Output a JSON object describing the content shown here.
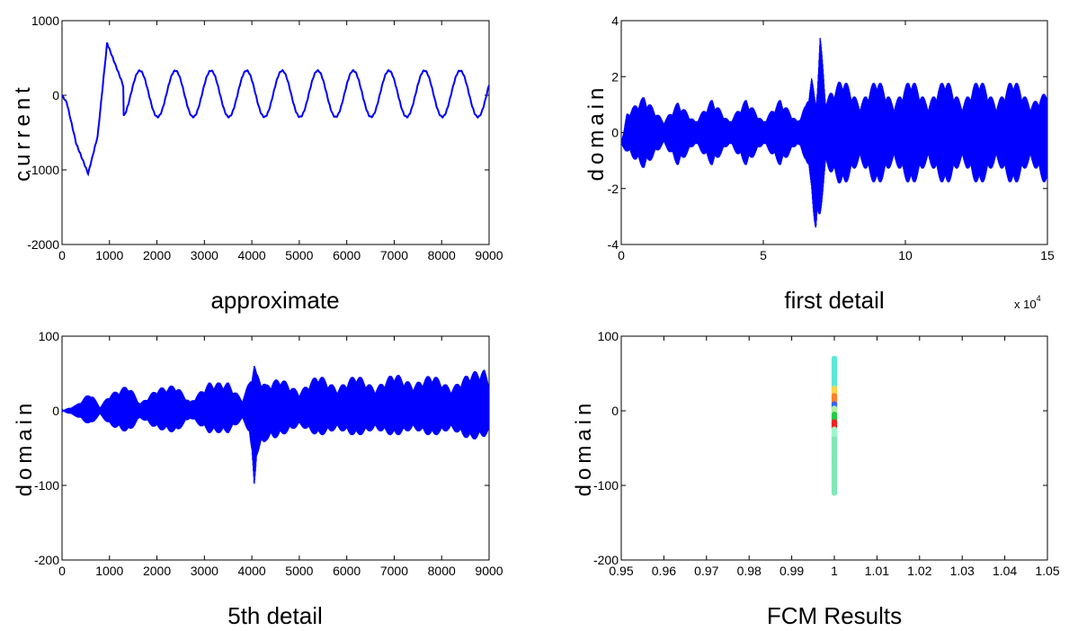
{
  "chart_data": [
    {
      "type": "line",
      "xlabel": "approximate",
      "ylabel": "current",
      "xlim": [
        0,
        9000
      ],
      "ylim": [
        -2000,
        1000
      ],
      "xticks": [
        "0",
        "1000",
        "2000",
        "3000",
        "4000",
        "5000",
        "6000",
        "7000",
        "8000",
        "9000"
      ],
      "yticks": [
        "-2000",
        "-1000",
        "0",
        "1000"
      ],
      "grid": false,
      "color": "#0000ff",
      "description_points": {
        "x": [
          0,
          100,
          300,
          550,
          750,
          950,
          1250,
          1500,
          1800,
          2000,
          2300,
          2550,
          3000,
          3300,
          4050,
          4300,
          4800,
          5200,
          5550,
          6300,
          7000,
          7800,
          8550,
          9000
        ],
        "y": [
          0,
          -100,
          -650,
          -1050,
          -550,
          700,
          200,
          -300,
          300,
          0,
          -300,
          300,
          -250,
          320,
          380,
          -280,
          320,
          -280,
          320,
          330,
          330,
          330,
          330,
          -280
        ]
      }
    },
    {
      "type": "line",
      "xlabel": "first detail",
      "ylabel": "domain",
      "xlim": [
        0,
        150000
      ],
      "ylim": [
        -4,
        4
      ],
      "xticks": [
        "0",
        "5",
        "10",
        "15"
      ],
      "yticks": [
        "-4",
        "-2",
        "0",
        "2",
        "4"
      ],
      "x_multiplier": {
        "base": "x 10",
        "exponent": "4"
      },
      "grid": false,
      "color": "#0000ff",
      "envelope": {
        "x": [
          0,
          2000,
          8000,
          15000,
          20000,
          26000,
          32000,
          38000,
          44000,
          50000,
          56000,
          62000,
          65000,
          67000,
          68500,
          70000,
          72000,
          78000,
          84000,
          90000,
          96000,
          102000,
          108000,
          114000,
          120000,
          126000,
          132000,
          138000,
          144000,
          150000
        ],
        "upper": [
          -0.5,
          0.7,
          1.3,
          0.4,
          1.1,
          0.4,
          1.2,
          0.4,
          1.2,
          0.4,
          1.2,
          0.4,
          1.0,
          2.0,
          1.0,
          3.5,
          1.2,
          2.0,
          1.0,
          2.0,
          1.0,
          2.0,
          1.0,
          2.0,
          1.0,
          2.0,
          1.0,
          2.0,
          1.0,
          1.5
        ],
        "lower": [
          -0.5,
          -0.7,
          -1.3,
          -0.4,
          -1.2,
          -0.4,
          -1.2,
          -0.4,
          -1.2,
          -0.4,
          -1.2,
          -0.4,
          -1.0,
          -2.0,
          -3.9,
          -3.0,
          -1.2,
          -2.0,
          -1.0,
          -2.0,
          -1.0,
          -2.0,
          -1.0,
          -2.0,
          -1.0,
          -2.0,
          -1.0,
          -2.0,
          -1.0,
          -2.0
        ]
      }
    },
    {
      "type": "line",
      "xlabel": "5th detail",
      "ylabel": "domain",
      "xlim": [
        0,
        9000
      ],
      "ylim": [
        -200,
        100
      ],
      "xticks": [
        "0",
        "1000",
        "2000",
        "3000",
        "4000",
        "5000",
        "6000",
        "7000",
        "8000",
        "9000"
      ],
      "yticks": [
        "-200",
        "-100",
        "0",
        "100"
      ],
      "grid": false,
      "color": "#0000ff",
      "envelope": {
        "x": [
          0,
          100,
          300,
          600,
          800,
          1000,
          1400,
          1650,
          2000,
          2400,
          2700,
          3100,
          3500,
          3800,
          3950,
          4050,
          4100,
          4300,
          4600,
          5000,
          5400,
          5800,
          6200,
          6600,
          7000,
          7400,
          7800,
          8200,
          8600,
          8900,
          9000
        ],
        "upper": [
          0,
          3,
          8,
          25,
          5,
          22,
          35,
          10,
          30,
          35,
          12,
          38,
          38,
          15,
          40,
          65,
          50,
          35,
          45,
          25,
          50,
          30,
          50,
          30,
          52,
          35,
          50,
          30,
          52,
          55,
          40
        ],
        "lower": [
          0,
          -3,
          -8,
          -20,
          -5,
          -20,
          -30,
          -10,
          -25,
          -30,
          -10,
          -30,
          -30,
          -12,
          -30,
          -108,
          -60,
          -40,
          -35,
          -20,
          -35,
          -25,
          -35,
          -25,
          -35,
          -25,
          -35,
          -25,
          -40,
          -35,
          -30
        ]
      }
    },
    {
      "type": "scatter",
      "xlabel": "FCM Results",
      "ylabel": "domain",
      "xlim": [
        0.95,
        1.05
      ],
      "ylim": [
        -200,
        100
      ],
      "xticks": [
        "0.95",
        "0.96",
        "0.97",
        "0.98",
        "0.99",
        "1",
        "1.01",
        "1.02",
        "1.03",
        "1.04",
        "1.05"
      ],
      "yticks": [
        "-200",
        "-100",
        "0",
        "100"
      ],
      "grid": false,
      "clusters": [
        {
          "x": 1,
          "y_from": 30,
          "y_to": 70,
          "color": "#5be8d8"
        },
        {
          "x": 1,
          "y_from": 15,
          "y_to": 30,
          "color": "#ffd34d"
        },
        {
          "x": 1,
          "y_from": 10,
          "y_to": 20,
          "color": "#ff7f2a"
        },
        {
          "x": 1,
          "y_from": 3,
          "y_to": 9,
          "color": "#3366ff"
        },
        {
          "x": 1,
          "y_from": -5,
          "y_to": 3,
          "color": "#b0f0a0"
        },
        {
          "x": 1,
          "y_from": -15,
          "y_to": -5,
          "color": "#22cc44"
        },
        {
          "x": 1,
          "y_from": -25,
          "y_to": -15,
          "color": "#ee2222"
        },
        {
          "x": 1,
          "y_from": -38,
          "y_to": -25,
          "color": "#9ef5cc"
        },
        {
          "x": 1,
          "y_from": -110,
          "y_to": -38,
          "color": "#7ee8b8"
        }
      ]
    }
  ]
}
